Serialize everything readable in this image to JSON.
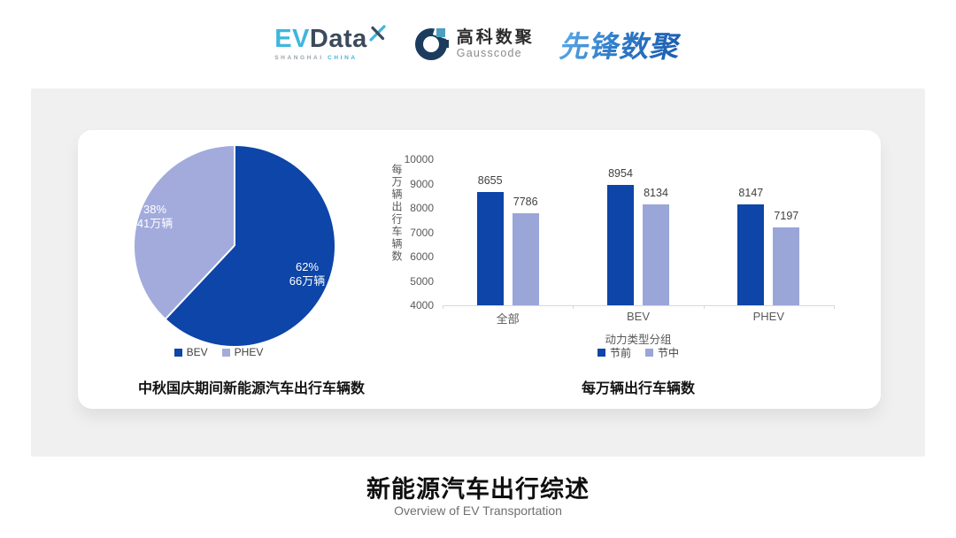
{
  "header": {
    "evdata": {
      "ev": "EV",
      "data": "Data",
      "sub_left": "SHANGHAI",
      "sub_right": "CHINA"
    },
    "gausscode": {
      "cn": "高科数聚",
      "en": "Gausscode"
    },
    "pioneer": {
      "text": "先锋数聚"
    }
  },
  "colors": {
    "primary_blue": "#0d45a8",
    "periwinkle_bar": "#9aa5d8",
    "periwinkle_pie": "#a2abdc",
    "evdata_cyan": "#3fb6dc",
    "evdata_navy": "#3c4a5b",
    "gausscode_navy": "#1c3c5e",
    "gausscode_teal": "#4d9fbe",
    "pioneer_blue": "#2f7cc9",
    "panel_gray": "#f0f0f1",
    "axis_gray": "#d9d9d9"
  },
  "chart_data": [
    {
      "type": "pie",
      "title": "中秋国庆期间新能源汽车出行车辆数",
      "start_angle": "top",
      "direction": "clockwise",
      "legend_position": "bottom",
      "slices": [
        {
          "label": "BEV",
          "percent": 62,
          "value": 66,
          "percent_label": "62%",
          "value_label": "66万辆",
          "color": "#0d45a8"
        },
        {
          "label": "PHEV",
          "percent": 38,
          "value": 41,
          "percent_label": "38%",
          "value_label": "41万辆",
          "color": "#a2abdc"
        }
      ]
    },
    {
      "type": "bar",
      "title": "每万辆出行车辆数",
      "categories": [
        "全部",
        "BEV",
        "PHEV"
      ],
      "series": [
        {
          "name": "节前",
          "values": [
            8655,
            8954,
            8147
          ],
          "color": "#0d45a8"
        },
        {
          "name": "节中",
          "values": [
            7786,
            8134,
            7197
          ],
          "color": "#9aa5d8"
        }
      ],
      "xlabel": "动力类型分组",
      "ylabel": "每万辆出行车辆数",
      "ylim": [
        4000,
        10000
      ],
      "yticks": [
        4000,
        5000,
        6000,
        7000,
        8000,
        9000,
        10000
      ],
      "grid": false,
      "legend_position": "bottom"
    }
  ],
  "footer": {
    "title": "新能源汽车出行综述",
    "subtitle": "Overview of EV Transportation"
  }
}
